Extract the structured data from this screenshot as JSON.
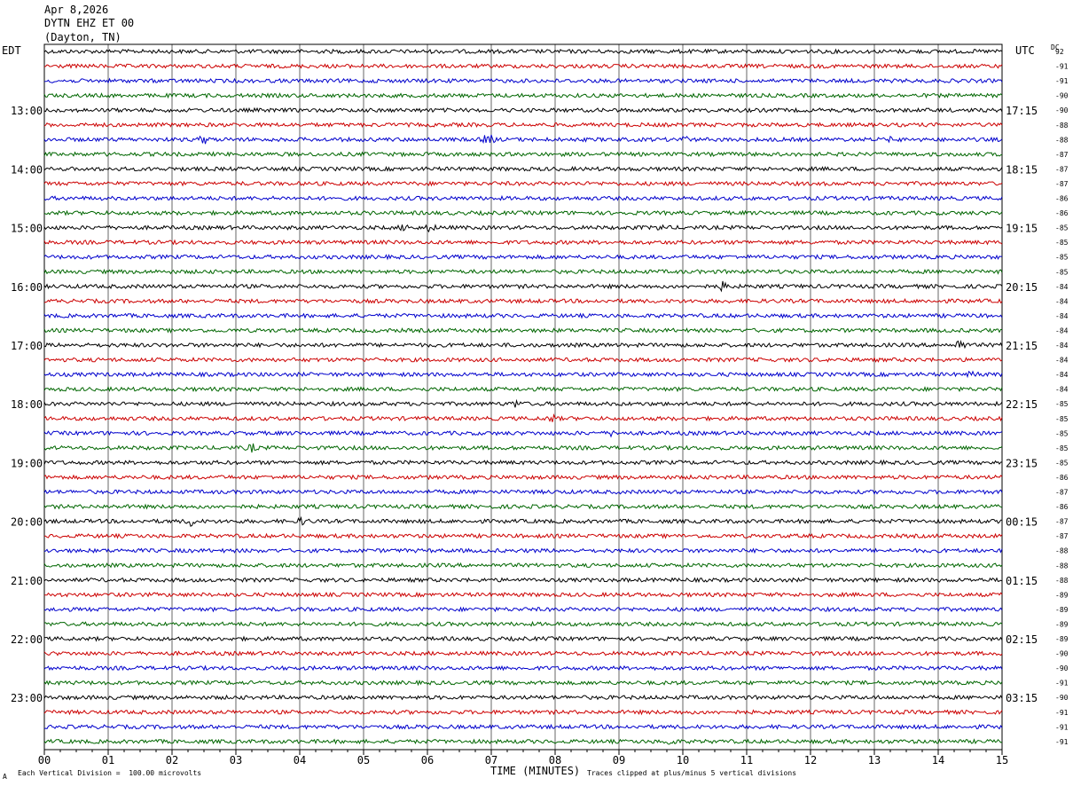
{
  "header": {
    "date": "Apr 8,2026",
    "station": "DYTN EHZ ET 00",
    "location": "(Dayton, TN)"
  },
  "left_timezone": "EDT",
  "right_timezone": "UTC",
  "dc_label": "DC",
  "footer": {
    "scale_note": "Each Vertical Division =  100.00 microvolts",
    "clip_note": "Traces clipped at plus/minus 5 vertical divisions",
    "mark": "A"
  },
  "colors": {
    "trace_cycle": [
      "#000000",
      "#cc0000",
      "#0000cc",
      "#006600"
    ],
    "grid": "#000000"
  },
  "chart_data": {
    "type": "line",
    "title": "",
    "xlabel": "TIME (MINUTES)",
    "ylabel": "",
    "x_ticks": [
      "00",
      "01",
      "02",
      "03",
      "04",
      "05",
      "06",
      "07",
      "08",
      "09",
      "10",
      "11",
      "12",
      "13",
      "14",
      "15"
    ],
    "xlim": [
      0,
      15
    ],
    "trace_count": 48,
    "left_hour_labels": [
      "13:00",
      "14:00",
      "15:00",
      "16:00",
      "17:00",
      "18:00",
      "19:00",
      "20:00",
      "21:00",
      "22:00",
      "23:00"
    ],
    "right_hour_labels": [
      "17:15",
      "18:15",
      "19:15",
      "20:15",
      "21:15",
      "22:15",
      "23:15",
      "00:15",
      "01:15",
      "02:15",
      "03:15"
    ],
    "dc_offsets": [
      "92",
      "-91",
      "-91",
      "-90",
      "-90",
      "-88",
      "-88",
      "-87",
      "-87",
      "-87",
      "-86",
      "-86",
      "-85",
      "-85",
      "-85",
      "-85",
      "-84",
      "-84",
      "-84",
      "-84",
      "-84",
      "-84",
      "-84",
      "-84",
      "-85",
      "-85",
      "-85",
      "-85",
      "-85",
      "-86",
      "-87",
      "-86",
      "-87",
      "-87",
      "-88",
      "-88",
      "-88",
      "-89",
      "-89",
      "-89",
      "-89",
      "-90",
      "-90",
      "-91",
      "-90",
      "-91",
      "-91",
      "-91"
    ],
    "events": [
      {
        "trace": 6,
        "minute": 2.5,
        "amp": 0.6
      },
      {
        "trace": 6,
        "minute": 6.95,
        "amp": 1.0
      },
      {
        "trace": 6,
        "minute": 10.0,
        "amp": 0.5
      },
      {
        "trace": 6,
        "minute": 13.3,
        "amp": 0.4
      },
      {
        "trace": 12,
        "minute": 5.65,
        "amp": 0.5
      },
      {
        "trace": 12,
        "minute": 6.05,
        "amp": 0.5
      },
      {
        "trace": 12,
        "minute": 9.65,
        "amp": 0.4
      },
      {
        "trace": 16,
        "minute": 10.65,
        "amp": 0.8
      },
      {
        "trace": 20,
        "minute": 14.35,
        "amp": 0.9
      },
      {
        "trace": 22,
        "minute": 14.55,
        "amp": 0.5
      },
      {
        "trace": 24,
        "minute": 7.4,
        "amp": 0.6
      },
      {
        "trace": 25,
        "minute": 7.95,
        "amp": 0.5
      },
      {
        "trace": 26,
        "minute": 8.9,
        "amp": 0.4
      },
      {
        "trace": 27,
        "minute": 3.25,
        "amp": 0.6
      },
      {
        "trace": 32,
        "minute": 2.3,
        "amp": 0.7
      },
      {
        "trace": 32,
        "minute": 4.05,
        "amp": 0.5
      },
      {
        "trace": 47,
        "minute": 9.8,
        "amp": 0.5
      }
    ]
  }
}
